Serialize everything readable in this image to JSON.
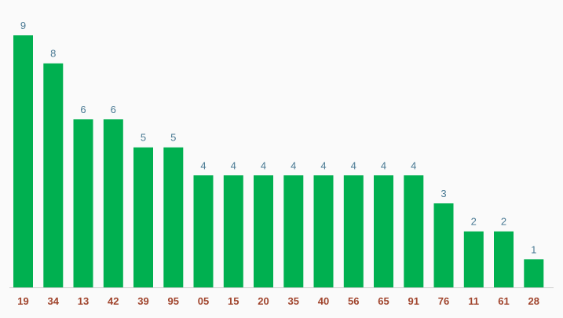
{
  "chart_data": {
    "type": "bar",
    "categories": [
      "19",
      "34",
      "13",
      "42",
      "39",
      "95",
      "05",
      "15",
      "20",
      "35",
      "40",
      "56",
      "65",
      "91",
      "76",
      "11",
      "61",
      "28"
    ],
    "values": [
      9,
      8,
      6,
      6,
      5,
      5,
      4,
      4,
      4,
      4,
      4,
      4,
      4,
      4,
      3,
      2,
      2,
      1
    ],
    "title": "",
    "xlabel": "",
    "ylabel": "",
    "ylim": [
      0,
      9
    ],
    "grid": false,
    "legend": "none",
    "data_labels": true,
    "colors": {
      "bar": "#00b050",
      "value_label": "#4a7a94",
      "tick_label": "#a0442c",
      "axis": "#cccccc",
      "background": "#fafafa"
    }
  }
}
